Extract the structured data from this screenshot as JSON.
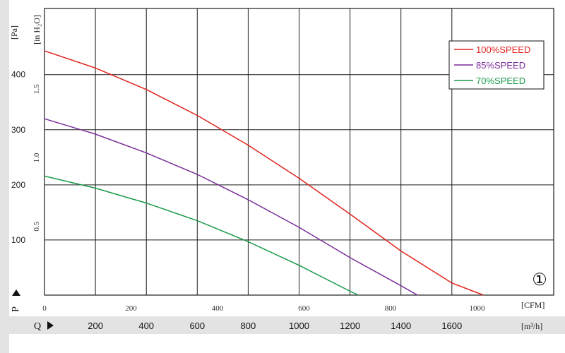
{
  "chart_data": {
    "type": "line",
    "x_primary": {
      "unit": "[m³/h]",
      "ticks": [
        200,
        400,
        600,
        800,
        1000,
        1200,
        1400,
        1600
      ],
      "range": [
        0,
        2000
      ],
      "symbol": "Q"
    },
    "x_secondary": {
      "unit": "[CFM]",
      "ticks": [
        0,
        200,
        400,
        600,
        800,
        1000
      ]
    },
    "y_primary": {
      "unit": "[Pa]",
      "ticks": [
        100,
        200,
        300,
        400
      ],
      "range": [
        0,
        520
      ],
      "symbol": "P"
    },
    "y_secondary": {
      "unit": "[in H₂O]",
      "ticks": [
        "0.5",
        "1.0",
        "1.5"
      ]
    },
    "grid": true,
    "legend": "top-right",
    "badge": "①",
    "colors": {
      "100": "#e0231c",
      "85": "#7b2c9a",
      "70": "#199a4a",
      "grid": "#1a1a1a",
      "band": "#e3e3e3"
    },
    "series": [
      {
        "name": "100%SPEED",
        "color": "#e0231c",
        "points": [
          [
            0,
            443
          ],
          [
            200,
            412
          ],
          [
            400,
            373
          ],
          [
            600,
            326
          ],
          [
            800,
            272
          ],
          [
            1000,
            212
          ],
          [
            1200,
            147
          ],
          [
            1400,
            80
          ],
          [
            1600,
            22
          ],
          [
            1724,
            0
          ]
        ]
      },
      {
        "name": "85%SPEED",
        "color": "#7b2c9a",
        "points": [
          [
            0,
            320
          ],
          [
            200,
            292
          ],
          [
            400,
            258
          ],
          [
            600,
            219
          ],
          [
            800,
            173
          ],
          [
            1000,
            123
          ],
          [
            1200,
            68
          ],
          [
            1400,
            17
          ],
          [
            1465,
            0
          ]
        ]
      },
      {
        "name": "70%SPEED",
        "color": "#199a4a",
        "points": [
          [
            0,
            216
          ],
          [
            200,
            194
          ],
          [
            400,
            167
          ],
          [
            600,
            135
          ],
          [
            800,
            97
          ],
          [
            1000,
            54
          ],
          [
            1200,
            7
          ],
          [
            1233,
            0
          ]
        ]
      }
    ]
  }
}
